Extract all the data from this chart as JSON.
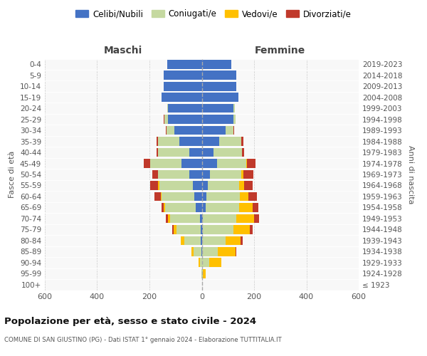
{
  "age_groups": [
    "100+",
    "95-99",
    "90-94",
    "85-89",
    "80-84",
    "75-79",
    "70-74",
    "65-69",
    "60-64",
    "55-59",
    "50-54",
    "45-49",
    "40-44",
    "35-39",
    "30-34",
    "25-29",
    "20-24",
    "15-19",
    "10-14",
    "5-9",
    "0-4"
  ],
  "birth_years": [
    "≤ 1923",
    "1924-1928",
    "1929-1933",
    "1934-1938",
    "1939-1943",
    "1944-1948",
    "1949-1953",
    "1954-1958",
    "1959-1963",
    "1964-1968",
    "1969-1973",
    "1974-1978",
    "1979-1983",
    "1984-1988",
    "1989-1993",
    "1994-1998",
    "1999-2003",
    "2004-2008",
    "2009-2013",
    "2014-2018",
    "2019-2023"
  ],
  "colors": {
    "celibe": "#4472C4",
    "coniugato": "#c5d9a0",
    "vedovo": "#ffc000",
    "divorziato": "#c0392b"
  },
  "maschi": {
    "celibe": [
      0,
      0,
      0,
      2,
      4,
      5,
      8,
      22,
      28,
      35,
      48,
      78,
      48,
      85,
      105,
      130,
      128,
      155,
      145,
      145,
      132
    ],
    "coniugato": [
      0,
      2,
      8,
      28,
      62,
      92,
      112,
      118,
      125,
      128,
      118,
      118,
      118,
      82,
      30,
      12,
      4,
      0,
      0,
      0,
      0
    ],
    "vedovo": [
      0,
      0,
      5,
      10,
      14,
      10,
      10,
      5,
      3,
      3,
      2,
      1,
      0,
      0,
      0,
      0,
      0,
      0,
      0,
      0,
      0
    ],
    "divorziato": [
      0,
      0,
      0,
      0,
      0,
      5,
      8,
      10,
      25,
      30,
      22,
      25,
      8,
      5,
      3,
      3,
      0,
      0,
      0,
      0,
      0
    ]
  },
  "femmine": {
    "nubile": [
      0,
      0,
      0,
      2,
      2,
      3,
      5,
      15,
      18,
      22,
      32,
      58,
      45,
      68,
      90,
      120,
      122,
      140,
      132,
      132,
      112
    ],
    "coniugata": [
      2,
      5,
      28,
      58,
      88,
      118,
      128,
      128,
      128,
      122,
      118,
      112,
      108,
      82,
      30,
      8,
      4,
      0,
      0,
      0,
      0
    ],
    "vedova": [
      0,
      10,
      48,
      68,
      58,
      62,
      68,
      52,
      32,
      18,
      8,
      4,
      0,
      0,
      0,
      0,
      0,
      0,
      0,
      0,
      0
    ],
    "divorziata": [
      0,
      0,
      0,
      5,
      8,
      12,
      18,
      22,
      32,
      33,
      38,
      32,
      10,
      8,
      3,
      0,
      0,
      0,
      0,
      0,
      0
    ]
  },
  "xlim": 600,
  "title": "Popolazione per età, sesso e stato civile - 2024",
  "subtitle": "COMUNE DI SAN GIUSTINO (PG) - Dati ISTAT 1° gennaio 2024 - Elaborazione TUTTITALIA.IT",
  "ylabel_left": "Fasce di età",
  "ylabel_right": "Anni di nascita",
  "maschi_label": "Maschi",
  "femmine_label": "Femmine",
  "legend_labels": [
    "Celibi/Nubili",
    "Coniugati/e",
    "Vedovi/e",
    "Divorziati/e"
  ],
  "bg_color": "#f8f8f8",
  "bar_height": 0.82
}
